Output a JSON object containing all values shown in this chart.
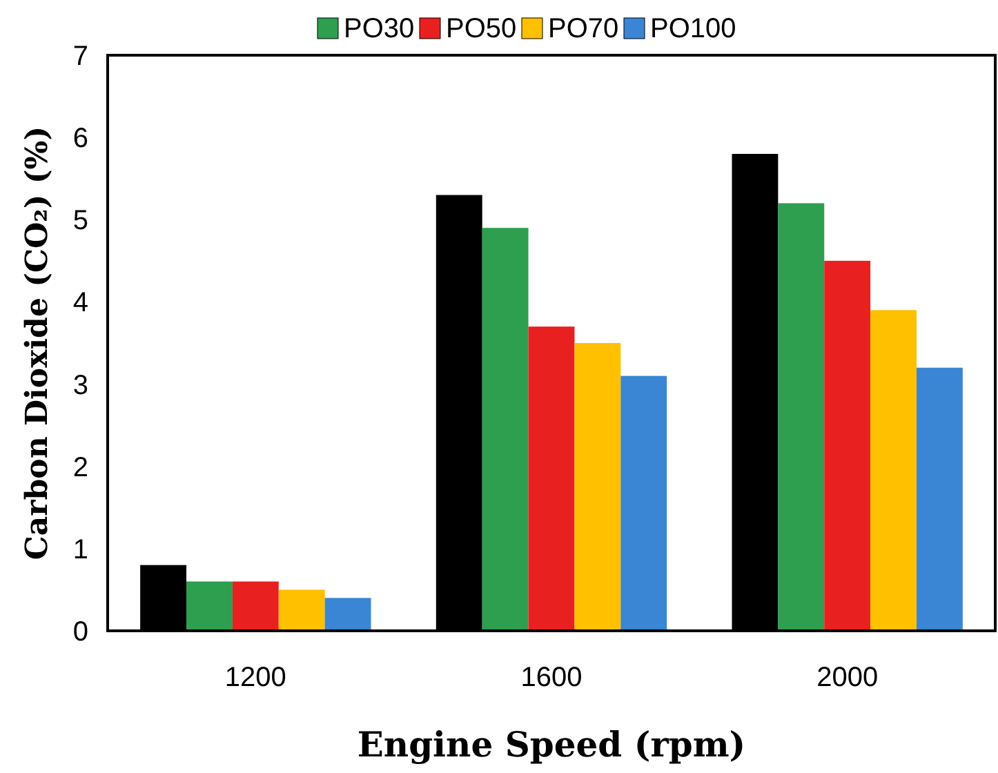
{
  "chart_data": {
    "type": "bar",
    "xlabel": "Engine Speed (rpm)",
    "ylabel": "Carbon Dioxide (CO₂) (%)",
    "categories": [
      "1200",
      "1600",
      "2000"
    ],
    "ylim": [
      0,
      7
    ],
    "yticks": [
      0,
      1,
      2,
      3,
      4,
      5,
      6,
      7
    ],
    "legend": "top",
    "series": [
      {
        "color": "#000000",
        "values": [
          0.8,
          5.3,
          5.8
        ]
      },
      {
        "name": "PO30",
        "color": "#2e9e4f",
        "values": [
          0.6,
          4.9,
          5.2
        ]
      },
      {
        "name": "PO50",
        "color": "#e8201f",
        "values": [
          0.6,
          3.7,
          4.5
        ]
      },
      {
        "name": "PO70",
        "color": "#ffc000",
        "values": [
          0.5,
          3.5,
          3.9
        ]
      },
      {
        "name": "PO100",
        "color": "#3a86d4",
        "values": [
          0.4,
          3.1,
          3.2
        ]
      }
    ]
  }
}
